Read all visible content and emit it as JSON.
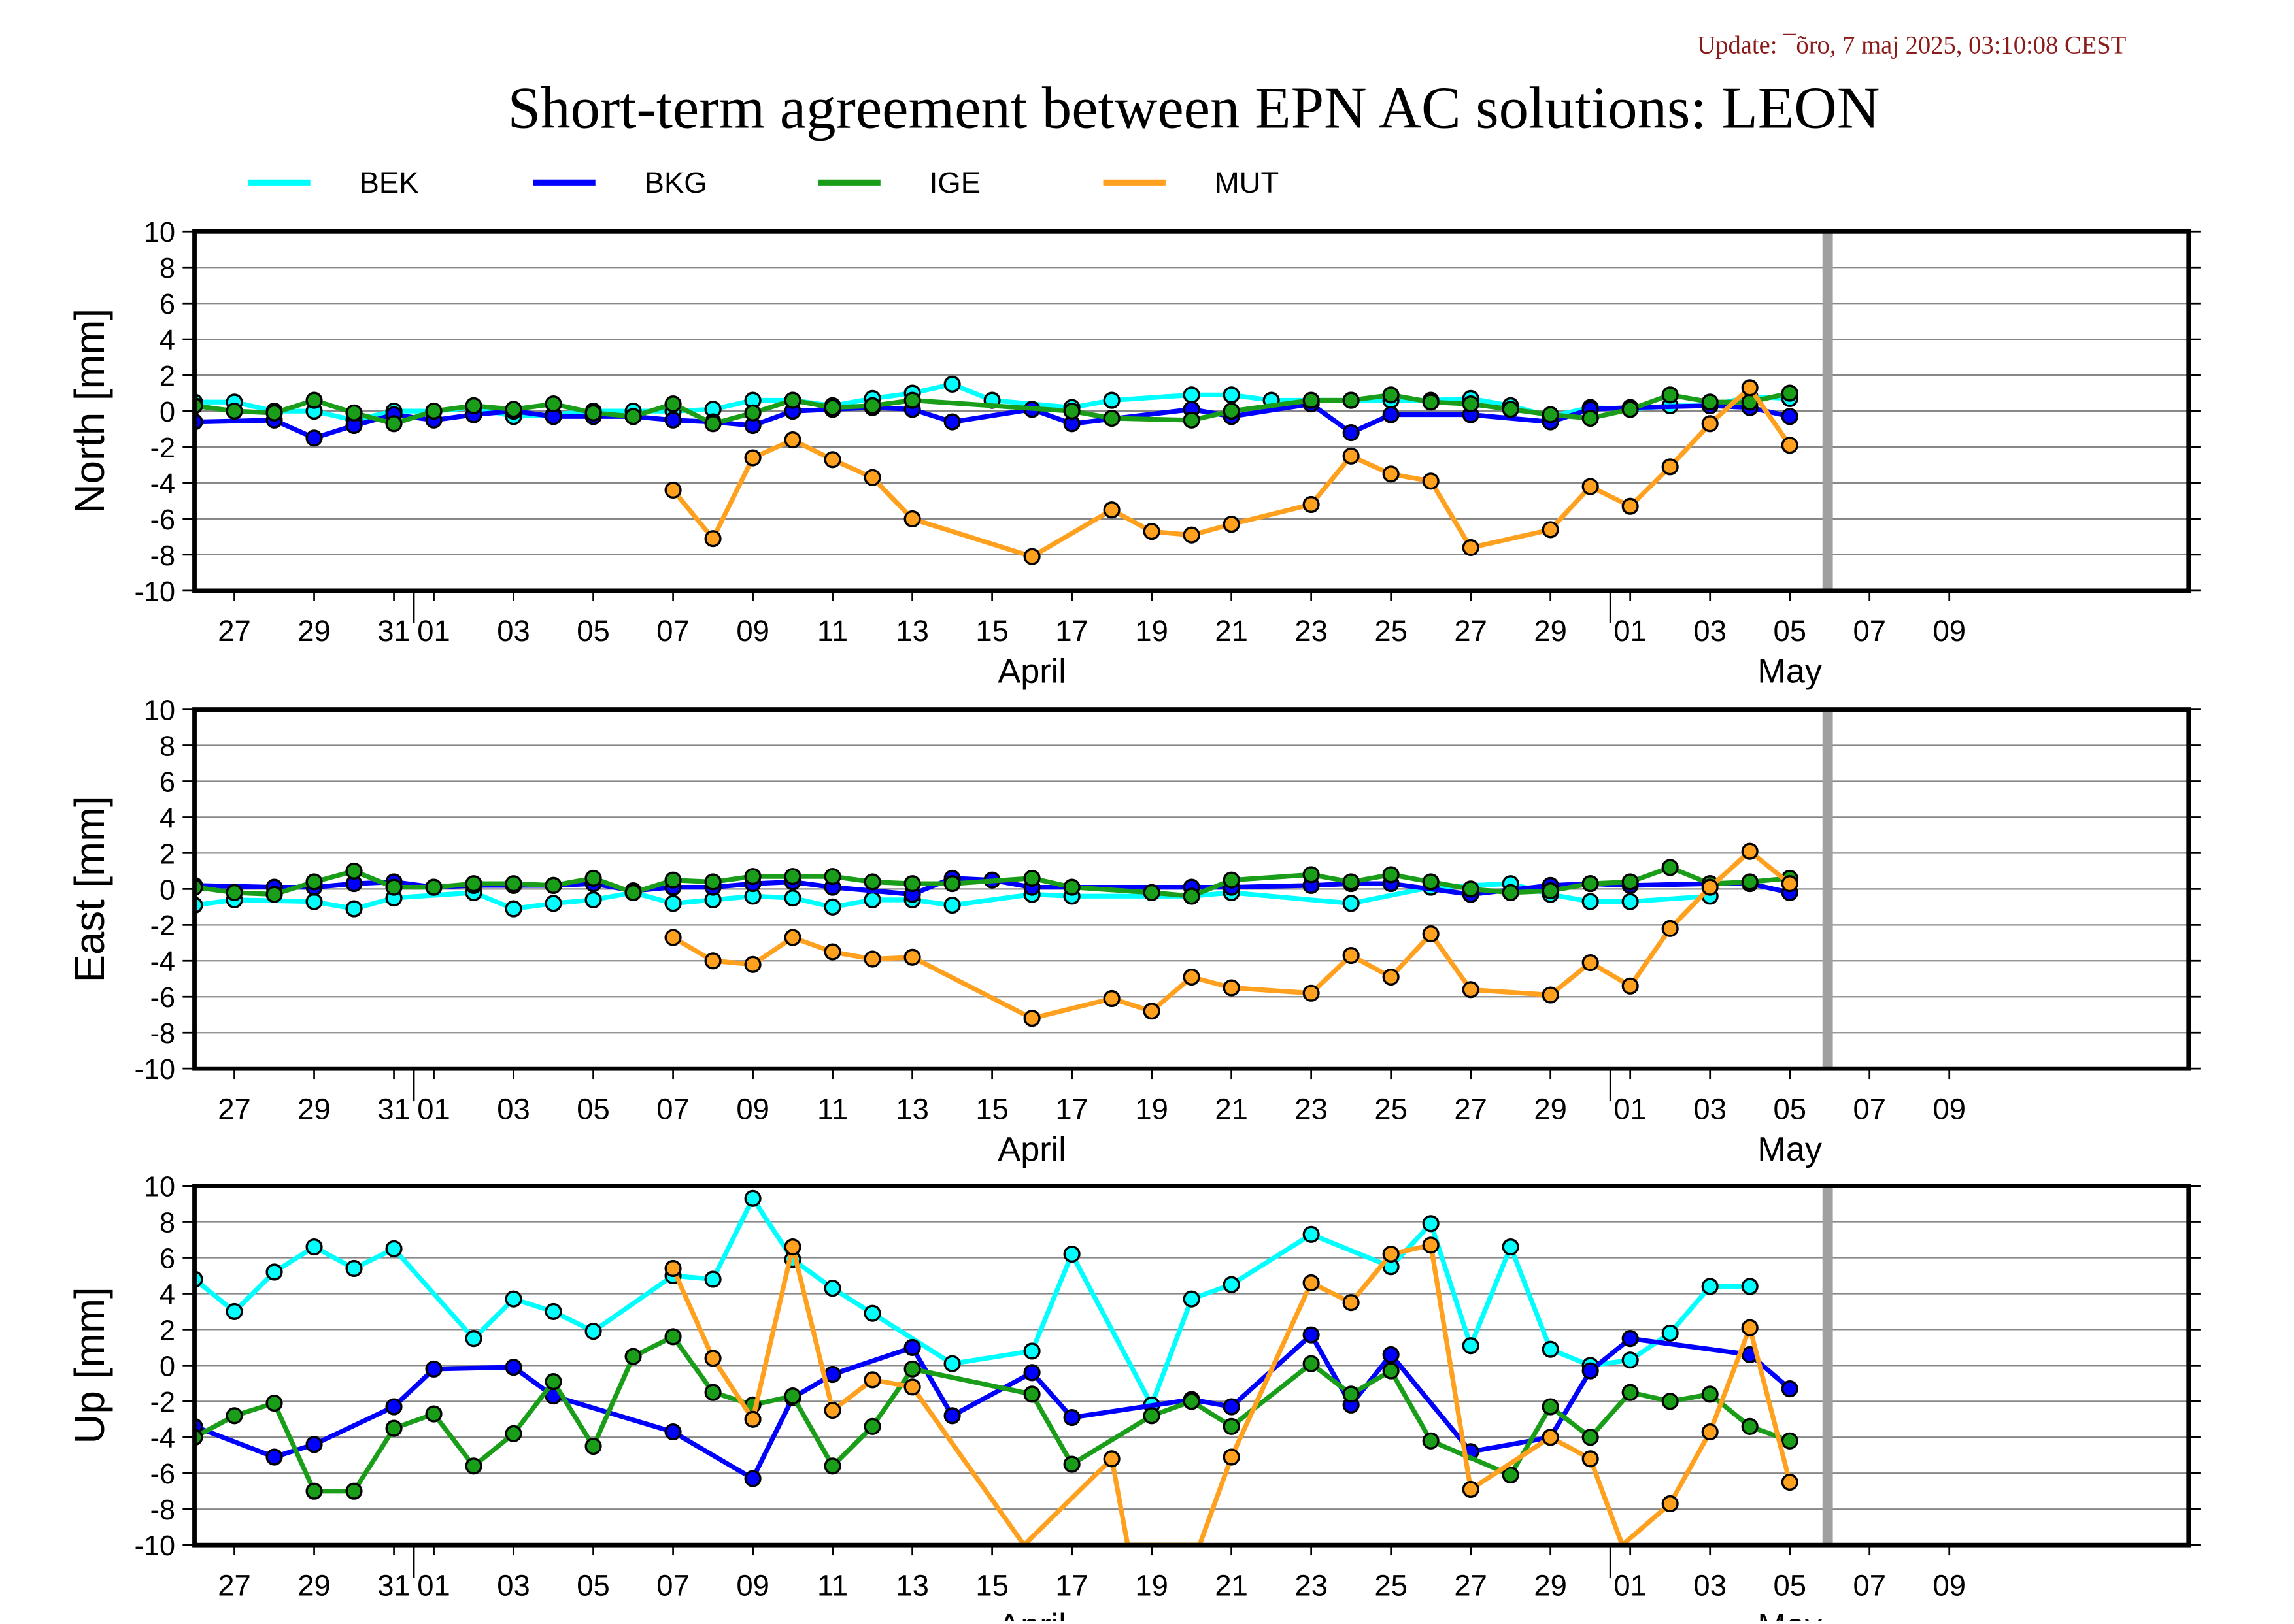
{
  "update": "Update: ¯õro, 7 maj 2025, 03:10:08 CEST",
  "title": "Short-term agreement between EPN AC solutions: LEON",
  "legend": [
    {
      "name": "BEK",
      "color": "#00ffff"
    },
    {
      "name": "BKG",
      "color": "#0000ff"
    },
    {
      "name": "IGE",
      "color": "#1a9e1a"
    },
    {
      "name": "MUT",
      "color": "#ffa01e"
    }
  ],
  "colors": {
    "frame": "#000000",
    "grid": "#888888",
    "today_marker": "#a0a0a0"
  },
  "x_axis": {
    "day_ticks": [
      "27",
      "29",
      "31",
      "01",
      "03",
      "05",
      "07",
      "09",
      "11",
      "13",
      "15",
      "17",
      "19",
      "21",
      "23",
      "25",
      "27",
      "29",
      "01",
      "03",
      "05",
      "07",
      "09"
    ],
    "month_labels": [
      "April",
      "May"
    ]
  },
  "y_ticks": [
    "10",
    "8",
    "6",
    "4",
    "2",
    "0",
    "-2",
    "-4",
    "-6",
    "-8",
    "-10"
  ],
  "chart_data": [
    {
      "type": "line",
      "ylabel": "North [mm]",
      "ylim": [
        -10,
        10
      ],
      "xlim": [
        -6,
        44
      ],
      "x_meaning": "day offset from 01 April 2025",
      "grid": true,
      "series": [
        {
          "name": "BEK",
          "x": [
            -6,
            -5,
            -4,
            -3,
            -2,
            -1,
            0,
            1,
            2,
            3,
            4,
            5,
            6,
            7,
            8,
            9,
            10,
            11,
            12,
            13,
            14,
            16,
            17,
            19,
            20,
            21,
            23,
            24,
            25,
            26,
            27,
            28,
            29,
            30,
            31,
            32,
            33,
            34
          ],
          "y": [
            0.5,
            0.5,
            0.0,
            0.0,
            -0.5,
            0.0,
            0.0,
            0.2,
            -0.3,
            -0.2,
            0.0,
            0.0,
            0.0,
            0.1,
            0.6,
            0.6,
            0.3,
            0.7,
            1.0,
            1.5,
            0.6,
            0.2,
            0.6,
            0.9,
            0.9,
            0.6,
            0.6,
            0.6,
            0.6,
            0.7,
            0.3,
            -0.3,
            0.2,
            0.1,
            0.3,
            0.3,
            0.8,
            0.7
          ]
        },
        {
          "name": "BKG",
          "x": [
            -6,
            -4,
            -3,
            -2,
            -1,
            0,
            1,
            2,
            3,
            4,
            5,
            6,
            7,
            8,
            9,
            10,
            11,
            12,
            13,
            15,
            16,
            19,
            20,
            22,
            23,
            24,
            26,
            28,
            29,
            30,
            32,
            33,
            34
          ],
          "y": [
            -0.6,
            -0.5,
            -1.5,
            -0.8,
            -0.2,
            -0.5,
            -0.2,
            0.0,
            -0.3,
            -0.3,
            -0.3,
            -0.5,
            -0.6,
            -0.8,
            0.0,
            0.1,
            0.2,
            0.1,
            -0.6,
            0.1,
            -0.7,
            0.1,
            -0.3,
            0.4,
            -1.2,
            -0.2,
            -0.2,
            -0.6,
            0.1,
            0.2,
            0.3,
            0.2,
            -0.3
          ]
        },
        {
          "name": "IGE",
          "x": [
            -6,
            -5,
            -4,
            -3,
            -2,
            -1,
            0,
            1,
            2,
            3,
            4,
            5,
            6,
            7,
            8,
            9,
            10,
            11,
            12,
            16,
            17,
            19,
            20,
            22,
            23,
            24,
            25,
            26,
            27,
            28,
            29,
            30,
            31,
            32,
            33,
            34
          ],
          "y": [
            0.3,
            0.0,
            -0.1,
            0.6,
            -0.1,
            -0.7,
            0.0,
            0.3,
            0.1,
            0.4,
            -0.1,
            -0.3,
            0.4,
            -0.7,
            -0.1,
            0.6,
            0.2,
            0.3,
            0.6,
            0.0,
            -0.4,
            -0.5,
            0.0,
            0.6,
            0.6,
            0.9,
            0.5,
            0.4,
            0.1,
            -0.2,
            -0.4,
            0.1,
            0.9,
            0.5,
            0.5,
            1.0
          ]
        },
        {
          "name": "MUT",
          "x": [
            6,
            7,
            8,
            9,
            10,
            11,
            12,
            15,
            17,
            18,
            19,
            20,
            22,
            23,
            24,
            25,
            26,
            28,
            29,
            30,
            31,
            32,
            33,
            34
          ],
          "y": [
            -4.4,
            -7.1,
            -2.6,
            -1.6,
            -2.7,
            -3.7,
            -6.0,
            -8.1,
            -5.5,
            -6.7,
            -6.9,
            -6.3,
            -5.2,
            -2.5,
            -3.5,
            -3.9,
            -7.6,
            -6.6,
            -4.2,
            -5.3,
            -3.1,
            -0.7,
            1.3,
            -1.9
          ]
        }
      ]
    },
    {
      "type": "line",
      "ylabel": "East [mm]",
      "ylim": [
        -10,
        10
      ],
      "xlim": [
        -6,
        44
      ],
      "x_meaning": "day offset from 01 April 2025",
      "grid": true,
      "series": [
        {
          "name": "BEK",
          "x": [
            -6,
            -5,
            -3,
            -2,
            -1,
            1,
            2,
            3,
            4,
            5,
            6,
            7,
            8,
            9,
            10,
            11,
            12,
            13,
            15,
            16,
            19,
            20,
            23,
            25,
            27,
            28,
            29,
            30,
            32
          ],
          "y": [
            -0.9,
            -0.6,
            -0.7,
            -1.1,
            -0.5,
            -0.2,
            -1.1,
            -0.8,
            -0.6,
            -0.2,
            -0.8,
            -0.6,
            -0.4,
            -0.5,
            -1.0,
            -0.6,
            -0.6,
            -0.9,
            -0.3,
            -0.4,
            -0.4,
            -0.2,
            -0.8,
            0.1,
            0.3,
            -0.3,
            -0.7,
            -0.7,
            -0.4
          ]
        },
        {
          "name": "BKG",
          "x": [
            -6,
            -4,
            -3,
            -2,
            -1,
            0,
            1,
            2,
            3,
            4,
            5,
            6,
            7,
            8,
            9,
            10,
            12,
            13,
            14,
            15,
            19,
            20,
            22,
            23,
            24,
            26,
            28,
            29,
            30,
            32,
            33,
            34
          ],
          "y": [
            0.2,
            0.1,
            0.1,
            0.3,
            0.4,
            0.1,
            0.2,
            0.2,
            0.2,
            0.3,
            -0.1,
            0.1,
            0.1,
            0.3,
            0.4,
            0.1,
            -0.3,
            0.6,
            0.5,
            0.1,
            0.1,
            0.1,
            0.2,
            0.3,
            0.3,
            -0.3,
            0.2,
            0.3,
            0.2,
            0.3,
            0.3,
            -0.2
          ]
        },
        {
          "name": "IGE",
          "x": [
            -6,
            -5,
            -4,
            -3,
            -2,
            -1,
            0,
            1,
            2,
            3,
            4,
            5,
            6,
            7,
            8,
            9,
            10,
            11,
            12,
            13,
            15,
            16,
            18,
            19,
            20,
            22,
            23,
            24,
            25,
            26,
            27,
            28,
            29,
            30,
            31,
            32,
            33,
            34
          ],
          "y": [
            0.1,
            -0.2,
            -0.3,
            0.4,
            1.0,
            0.1,
            0.1,
            0.3,
            0.3,
            0.2,
            0.6,
            -0.2,
            0.5,
            0.4,
            0.7,
            0.7,
            0.7,
            0.4,
            0.3,
            0.3,
            0.6,
            0.1,
            -0.2,
            -0.4,
            0.5,
            0.8,
            0.4,
            0.8,
            0.4,
            0.0,
            -0.2,
            -0.1,
            0.3,
            0.4,
            1.2,
            0.3,
            0.4,
            0.6
          ]
        },
        {
          "name": "MUT",
          "x": [
            6,
            7,
            8,
            9,
            10,
            11,
            12,
            15,
            17,
            18,
            19,
            20,
            22,
            23,
            24,
            25,
            26,
            28,
            29,
            30,
            31,
            32,
            33,
            34
          ],
          "y": [
            -2.7,
            -4.0,
            -4.2,
            -2.7,
            -3.5,
            -3.9,
            -3.8,
            -7.2,
            -6.1,
            -6.8,
            -4.9,
            -5.5,
            -5.8,
            -3.7,
            -4.9,
            -2.5,
            -5.6,
            -5.9,
            -4.1,
            -5.4,
            -2.2,
            0.1,
            2.1,
            0.3
          ]
        }
      ]
    },
    {
      "type": "line",
      "ylabel": "Up [mm]",
      "ylim": [
        -10,
        10
      ],
      "xlim": [
        -6,
        44
      ],
      "x_meaning": "day offset from 01 April 2025",
      "grid": true,
      "series": [
        {
          "name": "BEK",
          "x": [
            -6,
            -5,
            -4,
            -3,
            -2,
            -1,
            1,
            2,
            3,
            4,
            6,
            7,
            8,
            9,
            10,
            11,
            13,
            15,
            16,
            18,
            19,
            20,
            22,
            24,
            25,
            26,
            27,
            28,
            29,
            30,
            31,
            32,
            33,
            34
          ],
          "y": [
            4.8,
            3.0,
            5.2,
            6.6,
            5.4,
            6.5,
            1.5,
            3.7,
            3.0,
            1.9,
            5.0,
            4.8,
            9.3,
            5.9,
            4.3,
            2.9,
            0.1,
            0.8,
            6.2,
            -2.2,
            3.7,
            4.5,
            7.3,
            5.5,
            7.9,
            1.1,
            6.6,
            0.9,
            0.0,
            0.3,
            1.8,
            4.4,
            4.4,
            null
          ]
        },
        {
          "name": "BKG",
          "x": [
            -6,
            -4,
            -3,
            -1,
            0,
            2,
            3,
            6,
            8,
            9,
            10,
            12,
            13,
            15,
            16,
            19,
            20,
            22,
            23,
            24,
            26,
            28,
            29,
            30,
            33,
            34
          ],
          "y": [
            -3.4,
            -5.1,
            -4.4,
            -2.3,
            -0.2,
            -0.1,
            -1.7,
            -3.7,
            -6.3,
            -1.8,
            -0.5,
            1.0,
            -2.8,
            -0.4,
            -2.9,
            -1.9,
            -2.3,
            1.7,
            -2.2,
            0.6,
            -4.8,
            -4.0,
            -0.3,
            1.5,
            0.6,
            -1.3
          ]
        },
        {
          "name": "IGE",
          "x": [
            -6,
            -5,
            -4,
            -3,
            -2,
            -1,
            0,
            1,
            2,
            3,
            4,
            5,
            6,
            7,
            8,
            9,
            10,
            11,
            12,
            15,
            16,
            18,
            19,
            20,
            22,
            23,
            24,
            25,
            27,
            28,
            29,
            30,
            31,
            32,
            33,
            34
          ],
          "y": [
            -4.0,
            -2.8,
            -2.1,
            -7.0,
            -7.0,
            -3.5,
            -2.7,
            -5.6,
            -3.8,
            -0.9,
            -4.5,
            0.5,
            1.6,
            -1.5,
            -2.2,
            -1.7,
            -5.6,
            -3.4,
            -0.2,
            -1.6,
            -5.5,
            -2.8,
            -2.0,
            -3.4,
            0.1,
            -1.6,
            -0.3,
            -4.2,
            -6.1,
            -2.3,
            -4.0,
            -1.5,
            -2.0,
            -1.6,
            -3.4,
            -4.2
          ]
        },
        {
          "name": "MUT",
          "x": [
            6,
            7,
            8,
            9,
            10,
            11,
            12,
            14.8,
            17,
            17.4,
            19.2,
            20,
            22,
            23,
            24,
            25,
            26,
            28,
            29,
            29.8,
            31,
            32,
            33,
            34
          ],
          "y": [
            5.4,
            0.4,
            -3.0,
            6.6,
            -2.5,
            -0.8,
            -1.2,
            -10,
            -5.2,
            -10,
            -10,
            -5.1,
            4.6,
            3.5,
            6.2,
            6.7,
            -6.9,
            -4.0,
            -5.2,
            -10,
            -7.7,
            -3.7,
            2.1,
            -6.5
          ]
        }
      ]
    }
  ]
}
